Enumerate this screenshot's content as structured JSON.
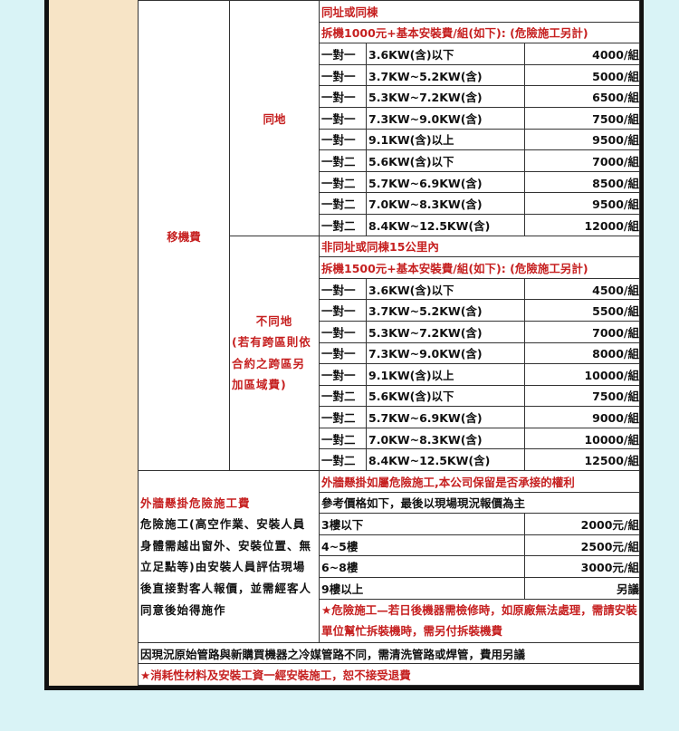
{
  "left_label": "移機費",
  "same": {
    "label": "同地",
    "header1": "同址或同棟",
    "header2": "拆機1000元+基本安裝費/組(如下): (危險施工另計)",
    "rows": [
      [
        "一對一",
        "3.6KW(含)以下",
        "4000/組"
      ],
      [
        "一對一",
        "3.7KW~5.2KW(含)",
        "5000/組"
      ],
      [
        "一對一",
        "5.3KW~7.2KW(含)",
        "6500/組"
      ],
      [
        "一對一",
        "7.3KW~9.0KW(含)",
        "7500/組"
      ],
      [
        "一對一",
        "9.1KW(含)以上",
        "9500/組"
      ],
      [
        "一對二",
        "5.6KW(含)以下",
        "7000/組"
      ],
      [
        "一對二",
        "5.7KW~6.9KW(含)",
        "8500/組"
      ],
      [
        "一對二",
        "7.0KW~8.3KW(含)",
        "9500/組"
      ],
      [
        "一對二",
        "8.4KW~12.5KW(含)",
        "12000/組"
      ]
    ]
  },
  "diff": {
    "label": "不同地",
    "note": "(若有跨區則依合約之跨區另加區域費)",
    "header1": "非同址或同棟15公里內",
    "header2": "拆機1500元+基本安裝費/組(如下): (危險施工另計)",
    "rows": [
      [
        "一對一",
        "3.6KW(含)以下",
        "4500/組"
      ],
      [
        "一對一",
        "3.7KW~5.2KW(含)",
        "5500/組"
      ],
      [
        "一對一",
        "5.3KW~7.2KW(含)",
        "7000/組"
      ],
      [
        "一對一",
        "7.3KW~9.0KW(含)",
        "8000/組"
      ],
      [
        "一對一",
        "9.1KW(含)以上",
        "10000/組"
      ],
      [
        "一對二",
        "5.6KW(含)以下",
        "7500/組"
      ],
      [
        "一對二",
        "5.7KW~6.9KW(含)",
        "9000/組"
      ],
      [
        "一對二",
        "7.0KW~8.3KW(含)",
        "10000/組"
      ],
      [
        "一對二",
        "8.4KW~12.5KW(含)",
        "12500/組"
      ]
    ]
  },
  "wall": {
    "title": "外牆懸掛危險施工費",
    "desc": "危險施工(高空作業、安裝人員身體需越出窗外、安裝位置、無立足點等)由安裝人員評估現場後直接對客人報價，並需經客人同意後始得施作",
    "header1": "外牆懸掛如屬危險施工,本公司保留是否承接的權利",
    "header2": "參考價格如下，最後以現場現況報價為主",
    "rows": [
      [
        "3樓以下",
        "2000元/組"
      ],
      [
        "4~5樓",
        "2500元/組"
      ],
      [
        "6~8樓",
        "3000元/組"
      ],
      [
        "9樓以上",
        "另議"
      ]
    ],
    "warning": "★危險施工—若日後機器需檢修時，如原廠無法處理，需請安裝單位幫忙拆裝機時，需另付拆裝機費"
  },
  "note1": "因現況原始管路與新購買機器之冷媒管路不同，需清洗管路或焊管，費用另議",
  "note2": "★消耗性材料及安裝工資一經安裝施工，恕不接受退費"
}
